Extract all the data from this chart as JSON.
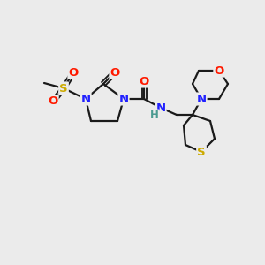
{
  "bg_color": "#ebebeb",
  "bond_color": "#1a1a1a",
  "bond_width": 1.6,
  "atom_colors": {
    "N": "#2020ff",
    "O": "#ff1a00",
    "S": "#ccaa00",
    "H_color": "#4a9a90",
    "NH": "#4a9a90"
  },
  "font_size": 9.5
}
